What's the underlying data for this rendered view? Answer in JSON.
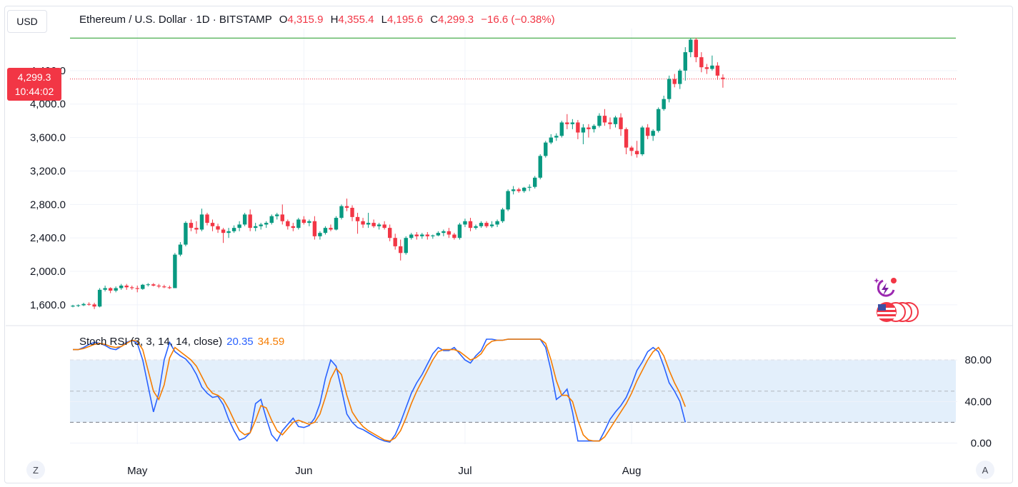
{
  "header": {
    "currency": "USD",
    "symbol": "Ethereum / U.S. Dollar · 1D · BITSTAMP",
    "ohlc": {
      "o_label": "O",
      "o": "4,315.9",
      "h_label": "H",
      "h": "4,355.4",
      "l_label": "L",
      "l": "4,195.6",
      "c_label": "C",
      "c": "4,299.3",
      "change": "−16.6 (−0.38%)"
    }
  },
  "price_tag": {
    "price": "4,299.3",
    "countdown": "10:44:02"
  },
  "indicator": {
    "name": "Stoch RSI (3, 3, 14, 14, close)",
    "k_value": "20.35",
    "d_value": "34.59"
  },
  "footer": {
    "left_button": "Z",
    "right_button": "A"
  },
  "colors": {
    "up": "#089981",
    "down": "#f23645",
    "k_line": "#2962ff",
    "d_line": "#f57c00",
    "band_fill": "#e3effb",
    "high_line": "#4caf50"
  },
  "icons": [
    "lightning-assistant-icon",
    "us-flag-icon"
  ],
  "chart_data": [
    {
      "type": "candlestick",
      "title": "Ethereum / U.S. Dollar · 1D · BITSTAMP",
      "y_ticks": [
        "1,600.0",
        "2,000.0",
        "2,400.0",
        "2,800.0",
        "3,200.0",
        "3,600.0",
        "4,000.0",
        "4,400.0"
      ],
      "y_tick_values": [
        1600,
        2000,
        2400,
        2800,
        3200,
        3600,
        4000,
        4400
      ],
      "ylim": [
        1420,
        4800
      ],
      "x_ticks": [
        {
          "label": "May",
          "index": 12
        },
        {
          "label": "Jun",
          "index": 43
        },
        {
          "label": "Jul",
          "index": 73
        },
        {
          "label": "Aug",
          "index": 104
        }
      ],
      "last_price": 4299.3,
      "high_line": 4788,
      "candles": [
        [
          1580,
          1600,
          1570,
          1590
        ],
        [
          1590,
          1605,
          1575,
          1595
        ],
        [
          1595,
          1625,
          1585,
          1610
        ],
        [
          1610,
          1630,
          1590,
          1605
        ],
        [
          1605,
          1625,
          1550,
          1580
        ],
        [
          1580,
          1800,
          1570,
          1780
        ],
        [
          1780,
          1830,
          1760,
          1800
        ],
        [
          1800,
          1810,
          1740,
          1770
        ],
        [
          1770,
          1820,
          1750,
          1800
        ],
        [
          1800,
          1850,
          1780,
          1830
        ],
        [
          1830,
          1850,
          1780,
          1810
        ],
        [
          1810,
          1830,
          1780,
          1800
        ],
        [
          1800,
          1830,
          1750,
          1790
        ],
        [
          1790,
          1850,
          1780,
          1840
        ],
        [
          1840,
          1860,
          1820,
          1845
        ],
        [
          1845,
          1860,
          1820,
          1830
        ],
        [
          1830,
          1850,
          1800,
          1820
        ],
        [
          1820,
          1840,
          1800,
          1810
        ],
        [
          1810,
          1830,
          1790,
          1800
        ],
        [
          1800,
          2220,
          1800,
          2200
        ],
        [
          2200,
          2350,
          2180,
          2320
        ],
        [
          2320,
          2600,
          2300,
          2580
        ],
        [
          2580,
          2620,
          2480,
          2520
        ],
        [
          2520,
          2600,
          2450,
          2500
        ],
        [
          2500,
          2750,
          2480,
          2680
        ],
        [
          2680,
          2700,
          2550,
          2580
        ],
        [
          2580,
          2620,
          2480,
          2540
        ],
        [
          2540,
          2570,
          2460,
          2500
        ],
        [
          2500,
          2520,
          2340,
          2460
        ],
        [
          2460,
          2520,
          2400,
          2480
        ],
        [
          2480,
          2550,
          2460,
          2520
        ],
        [
          2520,
          2600,
          2480,
          2560
        ],
        [
          2560,
          2700,
          2540,
          2680
        ],
        [
          2680,
          2740,
          2480,
          2520
        ],
        [
          2520,
          2580,
          2480,
          2540
        ],
        [
          2540,
          2580,
          2500,
          2560
        ],
        [
          2560,
          2600,
          2520,
          2580
        ],
        [
          2580,
          2680,
          2560,
          2660
        ],
        [
          2660,
          2700,
          2620,
          2680
        ],
        [
          2680,
          2800,
          2560,
          2600
        ],
        [
          2600,
          2620,
          2500,
          2540
        ],
        [
          2540,
          2580,
          2480,
          2520
        ],
        [
          2520,
          2640,
          2500,
          2620
        ],
        [
          2620,
          2660,
          2560,
          2580
        ],
        [
          2580,
          2620,
          2540,
          2600
        ],
        [
          2600,
          2660,
          2380,
          2420
        ],
        [
          2420,
          2480,
          2380,
          2460
        ],
        [
          2460,
          2540,
          2440,
          2520
        ],
        [
          2520,
          2560,
          2480,
          2500
        ],
        [
          2500,
          2660,
          2490,
          2640
        ],
        [
          2640,
          2800,
          2620,
          2780
        ],
        [
          2780,
          2870,
          2720,
          2760
        ],
        [
          2760,
          2790,
          2600,
          2650
        ],
        [
          2650,
          2700,
          2450,
          2600
        ],
        [
          2600,
          2640,
          2520,
          2560
        ],
        [
          2560,
          2700,
          2520,
          2580
        ],
        [
          2580,
          2620,
          2520,
          2540
        ],
        [
          2540,
          2580,
          2500,
          2560
        ],
        [
          2560,
          2600,
          2500,
          2520
        ],
        [
          2520,
          2560,
          2360,
          2400
        ],
        [
          2400,
          2450,
          2260,
          2300
        ],
        [
          2300,
          2380,
          2130,
          2220
        ],
        [
          2220,
          2420,
          2200,
          2400
        ],
        [
          2400,
          2460,
          2380,
          2440
        ],
        [
          2440,
          2470,
          2380,
          2420
        ],
        [
          2420,
          2460,
          2390,
          2440
        ],
        [
          2440,
          2470,
          2380,
          2420
        ],
        [
          2420,
          2440,
          2390,
          2430
        ],
        [
          2430,
          2480,
          2420,
          2460
        ],
        [
          2460,
          2500,
          2420,
          2480
        ],
        [
          2480,
          2520,
          2400,
          2440
        ],
        [
          2440,
          2460,
          2380,
          2400
        ],
        [
          2400,
          2580,
          2380,
          2560
        ],
        [
          2560,
          2630,
          2530,
          2600
        ],
        [
          2600,
          2640,
          2480,
          2520
        ],
        [
          2520,
          2560,
          2500,
          2540
        ],
        [
          2540,
          2600,
          2520,
          2580
        ],
        [
          2580,
          2600,
          2520,
          2540
        ],
        [
          2540,
          2600,
          2520,
          2560
        ],
        [
          2560,
          2620,
          2530,
          2600
        ],
        [
          2600,
          2760,
          2580,
          2740
        ],
        [
          2740,
          2980,
          2720,
          2960
        ],
        [
          2960,
          3020,
          2920,
          2980
        ],
        [
          2980,
          3000,
          2940,
          2960
        ],
        [
          2960,
          3010,
          2940,
          3000
        ],
        [
          3000,
          3040,
          2960,
          3010
        ],
        [
          3010,
          3140,
          2990,
          3120
        ],
        [
          3120,
          3400,
          3100,
          3380
        ],
        [
          3380,
          3560,
          3360,
          3540
        ],
        [
          3540,
          3640,
          3520,
          3600
        ],
        [
          3600,
          3650,
          3560,
          3620
        ],
        [
          3620,
          3800,
          3600,
          3780
        ],
        [
          3780,
          3880,
          3700,
          3760
        ],
        [
          3760,
          3820,
          3700,
          3780
        ],
        [
          3780,
          3810,
          3580,
          3660
        ],
        [
          3660,
          3760,
          3520,
          3720
        ],
        [
          3720,
          3760,
          3600,
          3700
        ],
        [
          3700,
          3760,
          3660,
          3740
        ],
        [
          3740,
          3890,
          3720,
          3860
        ],
        [
          3860,
          3940,
          3740,
          3780
        ],
        [
          3780,
          3840,
          3700,
          3760
        ],
        [
          3760,
          3860,
          3720,
          3840
        ],
        [
          3840,
          3890,
          3620,
          3700
        ],
        [
          3700,
          3720,
          3400,
          3480
        ],
        [
          3480,
          3500,
          3380,
          3440
        ],
        [
          3440,
          3560,
          3360,
          3400
        ],
        [
          3400,
          3740,
          3380,
          3720
        ],
        [
          3720,
          3760,
          3580,
          3620
        ],
        [
          3620,
          3700,
          3560,
          3680
        ],
        [
          3680,
          3960,
          3660,
          3940
        ],
        [
          3940,
          4100,
          3920,
          4060
        ],
        [
          4060,
          4340,
          4020,
          4300
        ],
        [
          4300,
          4360,
          4200,
          4240
        ],
        [
          4240,
          4420,
          4180,
          4400
        ],
        [
          4400,
          4680,
          4280,
          4620
        ],
        [
          4620,
          4790,
          4560,
          4770
        ],
        [
          4770,
          4790,
          4500,
          4560
        ],
        [
          4560,
          4620,
          4380,
          4440
        ],
        [
          4440,
          4480,
          4360,
          4420
        ],
        [
          4420,
          4580,
          4400,
          4460
        ],
        [
          4460,
          4500,
          4290,
          4340
        ],
        [
          4315.9,
          4355.4,
          4195.6,
          4299.3
        ]
      ]
    },
    {
      "type": "line",
      "title": "Stoch RSI (3, 3, 14, 14, close)",
      "y_ticks": [
        "0.00",
        "40.00",
        "80.00"
      ],
      "y_tick_values": [
        0,
        40,
        80
      ],
      "bands": [
        20,
        50,
        80
      ],
      "ylim": [
        -1,
        100
      ],
      "series": [
        {
          "name": "K",
          "values": [
            90,
            90,
            92,
            95,
            97,
            96,
            94,
            91,
            90,
            93,
            97,
            99,
            96,
            80,
            55,
            30,
            48,
            80,
            97,
            88,
            84,
            81,
            75,
            66,
            54,
            48,
            44,
            45,
            37,
            23,
            12,
            3,
            5,
            10,
            38,
            42,
            24,
            8,
            2,
            12,
            18,
            24,
            16,
            15,
            17,
            24,
            38,
            62,
            80,
            74,
            52,
            28,
            20,
            15,
            13,
            10,
            7,
            4,
            2,
            1,
            8,
            20,
            34,
            48,
            58,
            66,
            76,
            86,
            92,
            89,
            89,
            92,
            86,
            80,
            77,
            84,
            89,
            100,
            100,
            99,
            99,
            100,
            100,
            100,
            100,
            100,
            100,
            100,
            92,
            70,
            42,
            46,
            52,
            30,
            2,
            2,
            2,
            2,
            2,
            12,
            23,
            30,
            36,
            44,
            56,
            70,
            78,
            88,
            92,
            88,
            74,
            58,
            50,
            40,
            20
          ]
        },
        {
          "name": "D",
          "values": [
            90,
            90,
            91,
            93,
            95,
            96,
            95,
            93,
            92,
            93,
            96,
            99,
            98,
            90,
            70,
            50,
            42,
            56,
            82,
            92,
            88,
            84,
            80,
            74,
            64,
            54,
            48,
            46,
            42,
            33,
            22,
            12,
            8,
            10,
            22,
            36,
            34,
            22,
            12,
            8,
            14,
            20,
            22,
            20,
            18,
            20,
            28,
            44,
            62,
            72,
            66,
            46,
            30,
            22,
            16,
            12,
            9,
            6,
            3,
            2,
            5,
            12,
            24,
            38,
            50,
            60,
            70,
            80,
            88,
            90,
            90,
            90,
            88,
            84,
            80,
            82,
            86,
            94,
            98,
            99,
            99,
            100,
            100,
            100,
            100,
            100,
            100,
            100,
            96,
            80,
            60,
            46,
            46,
            40,
            22,
            8,
            3,
            2,
            2,
            6,
            14,
            22,
            30,
            38,
            48,
            60,
            70,
            80,
            88,
            92,
            84,
            70,
            58,
            48,
            35
          ]
        }
      ]
    }
  ]
}
